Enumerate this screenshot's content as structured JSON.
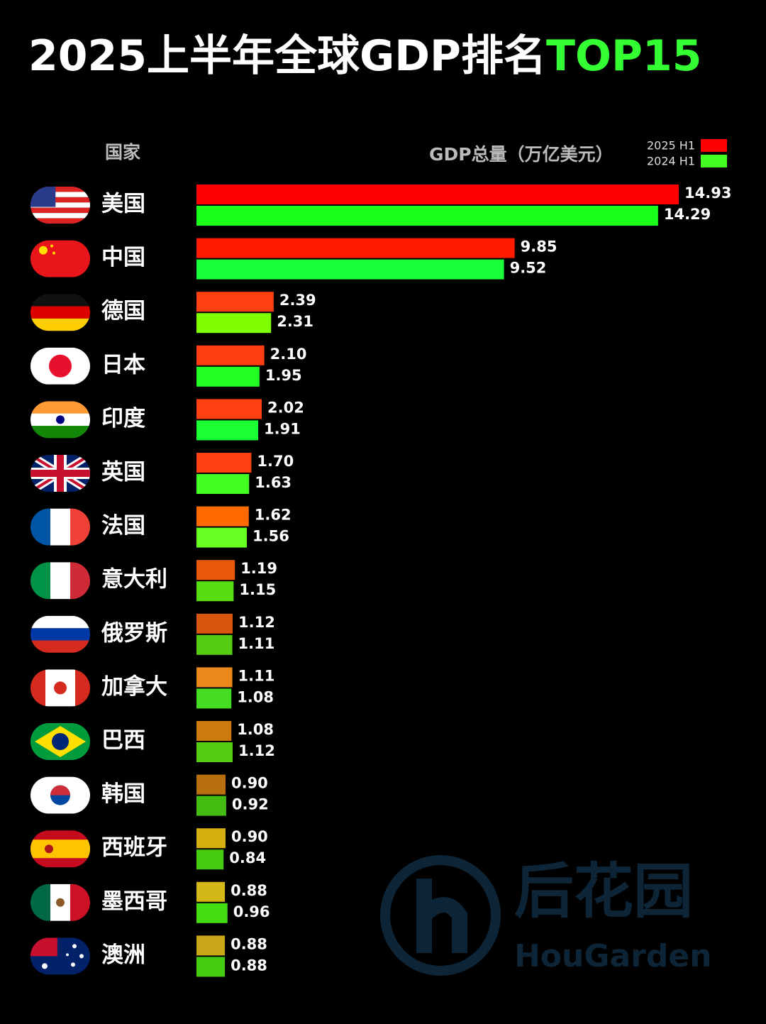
{
  "chart_data": {
    "type": "bar",
    "orientation": "horizontal",
    "title": "2025上半年全球GDP排名",
    "title_highlight": "TOP15",
    "title_highlight_color": "#33ff33",
    "category_header": "国家",
    "value_axis_label": "GDP总量（万亿美元）",
    "categories": [
      "美国",
      "中国",
      "德国",
      "日本",
      "印度",
      "英国",
      "法国",
      "意大利",
      "俄罗斯",
      "加拿大",
      "巴西",
      "韩国",
      "西班牙",
      "墨西哥",
      "澳洲"
    ],
    "series": [
      {
        "name": "2025 H1",
        "color": "#ff0000",
        "values": [
          14.93,
          9.85,
          2.39,
          2.1,
          2.02,
          1.7,
          1.62,
          1.19,
          1.12,
          1.11,
          1.08,
          0.9,
          0.9,
          0.88,
          0.88
        ],
        "value_labels": [
          "14.93",
          "9.85",
          "2.39",
          "2.10",
          "2.02",
          "1.70",
          "1.62",
          "1.19",
          "1.12",
          "1.11",
          "1.08",
          "0.90",
          "0.90",
          "0.88",
          "0.88"
        ],
        "colors": [
          "#ff0000",
          "#ff1a00",
          "#ff4010",
          "#ff3d12",
          "#ff4010",
          "#ff4010",
          "#ff6a00",
          "#e85a0a",
          "#d9560e",
          "#e8891a",
          "#cc7a10",
          "#b8700e",
          "#d4b010",
          "#d4b818",
          "#c8a818"
        ]
      },
      {
        "name": "2024 H1",
        "color": "#44ff22",
        "values": [
          14.29,
          9.52,
          2.31,
          1.95,
          1.91,
          1.63,
          1.56,
          1.15,
          1.11,
          1.08,
          1.12,
          0.92,
          0.84,
          0.96,
          0.88
        ],
        "value_labels": [
          "14.29",
          "9.52",
          "2.31",
          "1.95",
          "1.91",
          "1.63",
          "1.56",
          "1.15",
          "1.11",
          "1.08",
          "1.12",
          "0.92",
          "0.84",
          "0.96",
          "0.88"
        ],
        "colors": [
          "#19ff19",
          "#19ff3a",
          "#7fff00",
          "#22ff22",
          "#19ff33",
          "#44ff22",
          "#66ff22",
          "#55dd11",
          "#55cc11",
          "#44dd22",
          "#55cc11",
          "#44bb11",
          "#44cc11",
          "#44dd11",
          "#44cc11"
        ]
      }
    ],
    "watermark": {
      "title": "后花园",
      "subtitle": "HouGarden"
    }
  }
}
